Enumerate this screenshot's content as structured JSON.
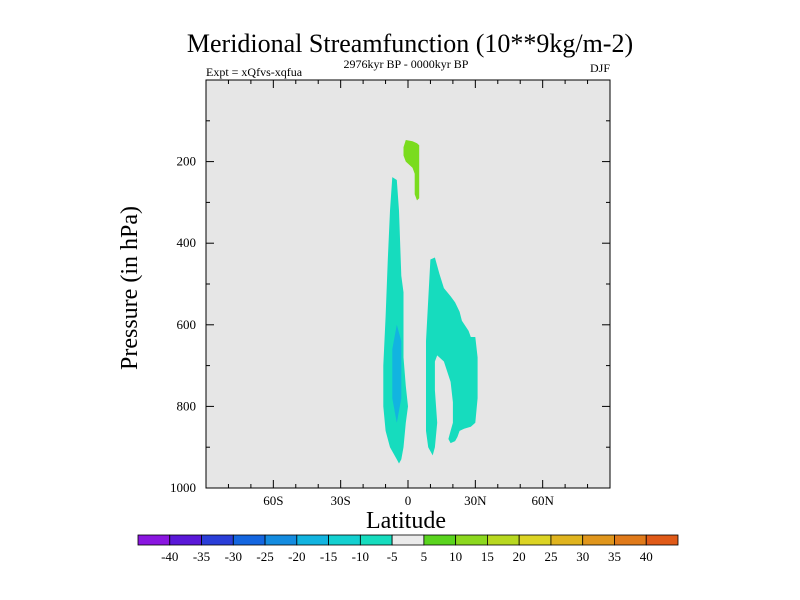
{
  "chart_data": {
    "type": "contour",
    "title": "Meridional Streamfunction (10**9kg/m-2)",
    "subtitle_left": "Expt = xQfvs-xqfua",
    "subtitle_center": "2976kyr BP - 0000kyr BP",
    "subtitle_right": "DJF",
    "xlabel": "Latitude",
    "ylabel": "Pressure (in hPa)",
    "xlim": [
      -90,
      90
    ],
    "ylim": [
      1000,
      0
    ],
    "xticks": [
      {
        "value": -60,
        "label": "60S"
      },
      {
        "value": -30,
        "label": "30S"
      },
      {
        "value": 0,
        "label": "0"
      },
      {
        "value": 30,
        "label": "30N"
      },
      {
        "value": 60,
        "label": "60N"
      }
    ],
    "yticks": [
      {
        "value": 200,
        "label": "200"
      },
      {
        "value": 400,
        "label": "400"
      },
      {
        "value": 600,
        "label": "600"
      },
      {
        "value": 800,
        "label": "800"
      },
      {
        "value": 1000,
        "label": "1000"
      }
    ],
    "background_color": "#e6e6e6",
    "regions": [
      {
        "name": "negative-cell-south",
        "level": "-10..-5",
        "color": "#16dcbe",
        "points": [
          [
            -7,
            238
          ],
          [
            -5,
            245
          ],
          [
            -4,
            320
          ],
          [
            -3,
            480
          ],
          [
            -2,
            520
          ],
          [
            -2,
            680
          ],
          [
            -1,
            750
          ],
          [
            0,
            800
          ],
          [
            -1,
            840
          ],
          [
            -2,
            900
          ],
          [
            -3,
            930
          ],
          [
            -4,
            940
          ],
          [
            -5,
            930
          ],
          [
            -8,
            900
          ],
          [
            -10,
            860
          ],
          [
            -11,
            800
          ],
          [
            -11,
            700
          ],
          [
            -10,
            580
          ],
          [
            -9,
            440
          ],
          [
            -8,
            320
          ]
        ]
      },
      {
        "name": "negative-core-south",
        "level": "-15..-10",
        "color": "#12b4e0",
        "points": [
          [
            -5,
            600
          ],
          [
            -3,
            640
          ],
          [
            -3,
            780
          ],
          [
            -5,
            840
          ],
          [
            -7,
            780
          ],
          [
            -7,
            660
          ]
        ]
      },
      {
        "name": "negative-cell-north",
        "level": "-10..-5",
        "color": "#16dcbe",
        "points": [
          [
            10,
            440
          ],
          [
            12,
            435
          ],
          [
            14,
            475
          ],
          [
            16,
            510
          ],
          [
            19,
            530
          ],
          [
            21,
            545
          ],
          [
            23,
            568
          ],
          [
            24,
            590
          ],
          [
            27,
            615
          ],
          [
            28,
            630
          ],
          [
            30,
            630
          ],
          [
            31,
            680
          ],
          [
            31,
            780
          ],
          [
            30,
            840
          ],
          [
            28,
            850
          ],
          [
            25,
            855
          ],
          [
            23,
            860
          ],
          [
            22,
            875
          ],
          [
            21,
            885
          ],
          [
            19,
            890
          ],
          [
            18,
            880
          ],
          [
            19,
            860
          ],
          [
            20,
            840
          ],
          [
            20,
            790
          ],
          [
            19,
            740
          ],
          [
            16,
            690
          ],
          [
            13,
            675
          ],
          [
            12,
            690
          ],
          [
            12,
            760
          ],
          [
            13,
            840
          ],
          [
            12,
            900
          ],
          [
            11,
            920
          ],
          [
            9,
            900
          ],
          [
            8,
            860
          ],
          [
            8,
            760
          ],
          [
            8,
            640
          ],
          [
            9,
            540
          ]
        ]
      },
      {
        "name": "positive-cell-upper",
        "level": "5..10",
        "color": "#7adc1e",
        "points": [
          [
            -1,
            147
          ],
          [
            2,
            150
          ],
          [
            4,
            155
          ],
          [
            5,
            160
          ],
          [
            5,
            195
          ],
          [
            5,
            230
          ],
          [
            5,
            260
          ],
          [
            5,
            290
          ],
          [
            4,
            295
          ],
          [
            3,
            280
          ],
          [
            3,
            230
          ],
          [
            2,
            215
          ],
          [
            0,
            205
          ],
          [
            -1,
            200
          ],
          [
            -2,
            185
          ],
          [
            -2,
            165
          ]
        ]
      }
    ],
    "colorbar": {
      "levels": [
        "-40",
        "-35",
        "-30",
        "-25",
        "-20",
        "-15",
        "-10",
        "-5",
        "5",
        "10",
        "15",
        "20",
        "25",
        "30",
        "35",
        "40"
      ],
      "colors": [
        "#8a16e0",
        "#5a18d8",
        "#2a3ed8",
        "#1466e0",
        "#148ce0",
        "#12b4e0",
        "#14d0d0",
        "#16dcbe",
        "#ebebeb",
        "#5ad41e",
        "#8cd81e",
        "#b8d820",
        "#dcd424",
        "#e0b41e",
        "#e0961c",
        "#e07a1a",
        "#e05a18"
      ]
    }
  }
}
